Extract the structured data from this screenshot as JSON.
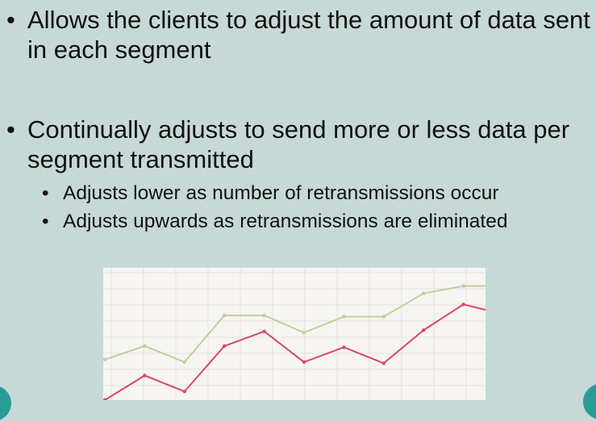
{
  "bullets": [
    {
      "text": "Allows the clients to adjust the amount of data sent in each segment"
    },
    {
      "text": "Continually adjusts to send more or less data per segment transmitted"
    }
  ],
  "sub_bullets": [
    {
      "text": "Adjusts lower as number of retransmissions occur"
    },
    {
      "text": "Adjusts upwards as retransmissions are eliminated"
    }
  ],
  "bullet_char": "•",
  "colors": {
    "background": "#c7d9d6",
    "accent": "#2a9c97",
    "line_green": "#bfd19a",
    "line_pink": "#d9476b",
    "grid": "#e4e1df",
    "chart_bg": "#f7f5f3"
  },
  "chart_data": {
    "type": "line",
    "title": "",
    "xlabel": "",
    "ylabel": "",
    "grid": true,
    "x": [
      0,
      1,
      2,
      3,
      4,
      5,
      6,
      7,
      8,
      9,
      10
    ],
    "ylim": [
      0,
      100
    ],
    "series": [
      {
        "values": [
          33,
          44,
          31,
          69,
          69,
          55,
          68,
          68,
          87,
          93,
          93
        ]
      },
      {
        "values": [
          0,
          20,
          7,
          44,
          56,
          31,
          43,
          30,
          57,
          78,
          70
        ]
      }
    ]
  }
}
